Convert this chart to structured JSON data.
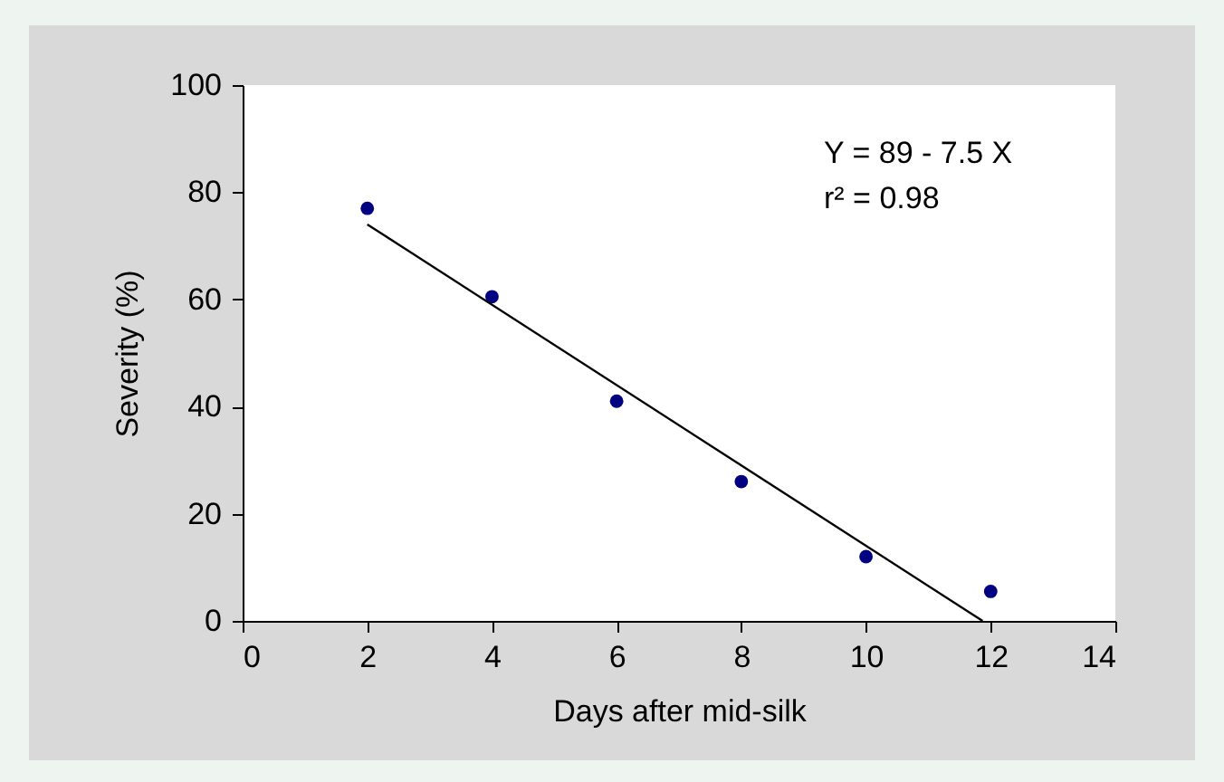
{
  "chart_data": {
    "type": "scatter",
    "xlabel": "Days after mid-silk",
    "ylabel": "Severity (%)",
    "annotations": [
      "Y = 89 - 7.5 X",
      "r² = 0.98"
    ],
    "xlim": [
      0,
      14
    ],
    "ylim": [
      0,
      100
    ],
    "xticks": [
      0,
      2,
      4,
      6,
      8,
      10,
      12,
      14
    ],
    "yticks": [
      0,
      20,
      40,
      60,
      80,
      100
    ],
    "marker": "circle",
    "series": [
      {
        "color": "#000080",
        "x": [
          2,
          4,
          6,
          8,
          10,
          12
        ],
        "values": [
          77,
          60.5,
          41,
          26,
          12,
          5.5
        ]
      },
      {
        "type": "line",
        "color": "#000000",
        "line_style": "solid",
        "marker": "none",
        "x": [
          2,
          11.87
        ],
        "values": [
          74,
          0
        ]
      }
    ]
  }
}
